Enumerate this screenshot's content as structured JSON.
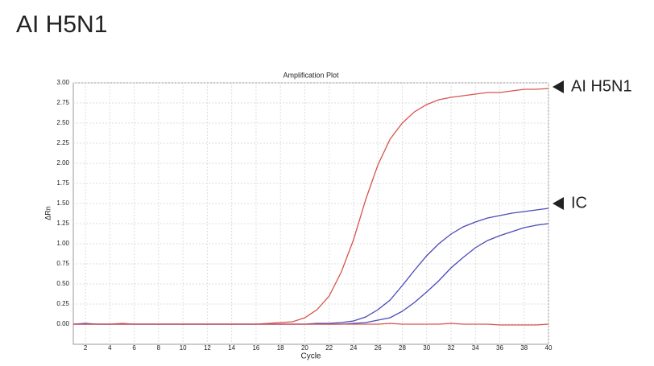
{
  "page_title": "AI H5N1",
  "chart_data": {
    "type": "line",
    "title": "Amplification Plot",
    "xlabel": "Cycle",
    "ylabel": "ΔRn",
    "x": [
      1,
      2,
      3,
      4,
      5,
      6,
      7,
      8,
      9,
      10,
      11,
      12,
      13,
      14,
      15,
      16,
      17,
      18,
      19,
      20,
      21,
      22,
      23,
      24,
      25,
      26,
      27,
      28,
      29,
      30,
      31,
      32,
      33,
      34,
      35,
      36,
      37,
      38,
      39,
      40
    ],
    "series": [
      {
        "color": "#d9534f",
        "values": [
          0,
          0,
          0,
          0,
          0.01,
          0,
          0,
          0,
          0,
          0,
          0,
          0,
          0,
          0,
          0,
          0,
          0.01,
          0.02,
          0.03,
          0.08,
          0.18,
          0.35,
          0.65,
          1.05,
          1.55,
          1.98,
          2.3,
          2.5,
          2.64,
          2.73,
          2.79,
          2.82,
          2.84,
          2.86,
          2.88,
          2.88,
          2.9,
          2.92,
          2.92,
          2.93
        ]
      },
      {
        "color": "#4a4ab8",
        "values": [
          0,
          0.01,
          0,
          0,
          0,
          0,
          0,
          0,
          0,
          0,
          0,
          0,
          0,
          0,
          0,
          0,
          0,
          0,
          0,
          0,
          0.01,
          0.01,
          0.02,
          0.04,
          0.09,
          0.18,
          0.3,
          0.48,
          0.67,
          0.85,
          1.0,
          1.12,
          1.21,
          1.27,
          1.32,
          1.35,
          1.38,
          1.4,
          1.42,
          1.44
        ]
      },
      {
        "color": "#4a4ab8",
        "values": [
          0,
          0,
          0,
          0,
          0,
          0,
          0,
          0,
          0,
          0,
          0,
          0,
          0,
          0,
          0,
          0,
          0,
          0,
          0,
          0,
          0,
          0,
          0,
          0.01,
          0.02,
          0.05,
          0.08,
          0.16,
          0.27,
          0.4,
          0.54,
          0.7,
          0.83,
          0.95,
          1.04,
          1.1,
          1.15,
          1.2,
          1.23,
          1.25
        ]
      },
      {
        "color": "#d9534f",
        "values": [
          0,
          0,
          0,
          0,
          0,
          0,
          0,
          0,
          0,
          0,
          0,
          0,
          0,
          0,
          0,
          0,
          0,
          0,
          0,
          0,
          0,
          0,
          0,
          0,
          0,
          0,
          0.01,
          0,
          0,
          0,
          0,
          0.01,
          0,
          0,
          0,
          -0.01,
          -0.01,
          -0.01,
          -0.01,
          0
        ]
      }
    ],
    "xlim": [
      1,
      40
    ],
    "xticks": [
      2,
      4,
      6,
      8,
      10,
      12,
      14,
      16,
      18,
      20,
      22,
      24,
      26,
      28,
      30,
      32,
      34,
      36,
      38,
      40
    ],
    "ylim": [
      -0.25,
      3.0
    ],
    "yticks": [
      {
        "value": 0,
        "label": "0.00"
      },
      {
        "value": 0.25,
        "label": "0.25"
      },
      {
        "value": 0.5,
        "label": "0.50"
      },
      {
        "value": 0.75,
        "label": "0.75"
      },
      {
        "value": 1,
        "label": "1.00"
      },
      {
        "value": 1.25,
        "label": "1.25"
      },
      {
        "value": 1.5,
        "label": "1.50"
      },
      {
        "value": 1.75,
        "label": "1.75"
      },
      {
        "value": 2,
        "label": "2.00"
      },
      {
        "value": 2.25,
        "label": "2.25"
      },
      {
        "value": 2.5,
        "label": "2.50"
      },
      {
        "value": 2.75,
        "label": "2.75"
      },
      {
        "value": 3,
        "label": "3.00"
      }
    ],
    "grid": true,
    "annotations": [
      {
        "text": "AI H5N1",
        "y": 2.95
      },
      {
        "text": "IC",
        "y": 1.5
      }
    ]
  }
}
